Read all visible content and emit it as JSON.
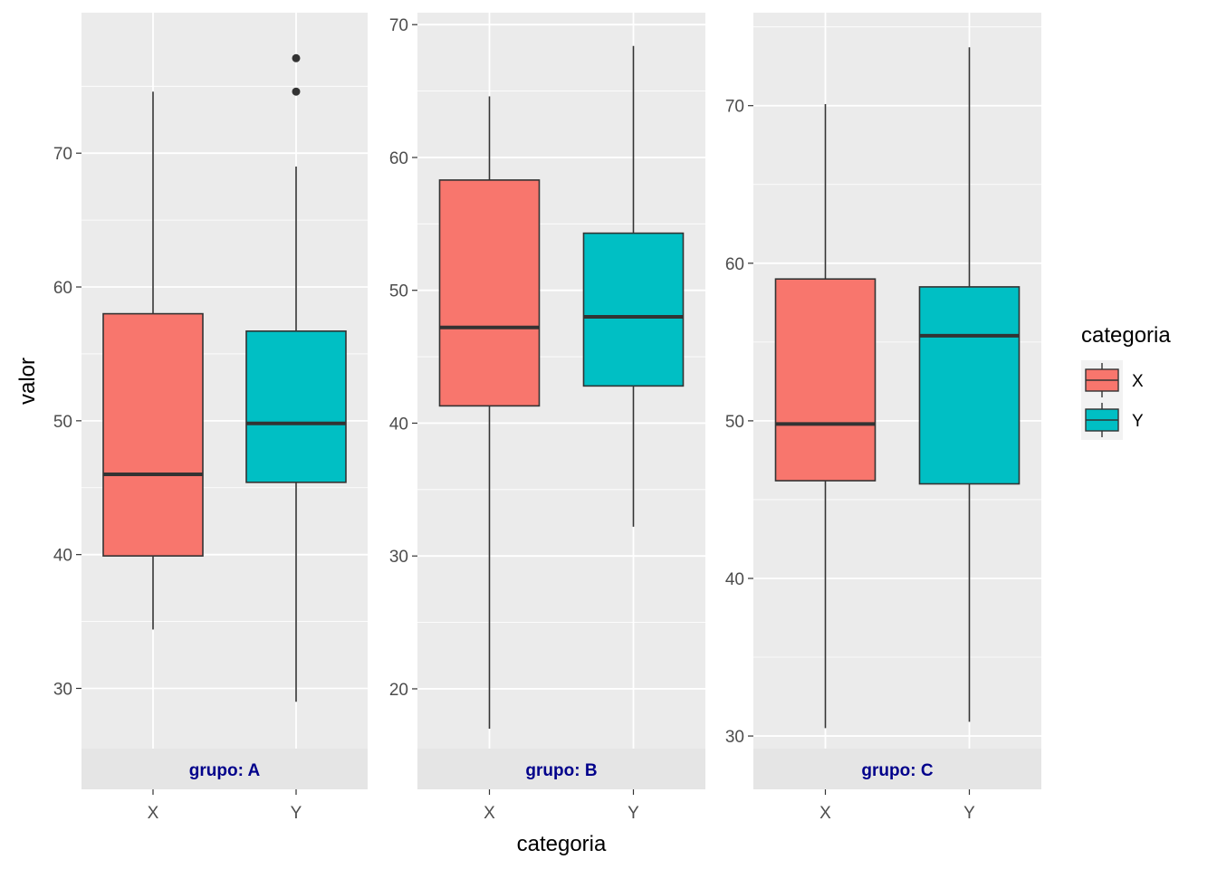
{
  "chart_data": {
    "type": "boxplot",
    "facet_variable": "grupo",
    "xlabel": "categoria",
    "ylabel": "valor",
    "categories": [
      "X",
      "Y"
    ],
    "colors": {
      "X": "#F8766D",
      "Y": "#00BFC4"
    },
    "legend": {
      "title": "categoria",
      "position": "right",
      "entries": [
        "X",
        "Y"
      ]
    },
    "panels": [
      {
        "strip": "grupo: A",
        "ylim": [
          25.5,
          80.5
        ],
        "yticks": [
          30,
          40,
          50,
          60,
          70
        ],
        "boxes": [
          {
            "category": "X",
            "lower_whisker": 34.4,
            "q1": 39.9,
            "median": 46.0,
            "q3": 58.0,
            "upper_whisker": 74.6,
            "outliers": []
          },
          {
            "category": "Y",
            "lower_whisker": 29.0,
            "q1": 45.4,
            "median": 49.8,
            "q3": 56.7,
            "upper_whisker": 69.0,
            "outliers": [
              74.6,
              77.1
            ]
          }
        ]
      },
      {
        "strip": "grupo: B",
        "ylim": [
          15.5,
          70.9
        ],
        "yticks": [
          20,
          30,
          40,
          50,
          60,
          70
        ],
        "boxes": [
          {
            "category": "X",
            "lower_whisker": 17.0,
            "q1": 41.3,
            "median": 47.2,
            "q3": 58.3,
            "upper_whisker": 64.6,
            "outliers": []
          },
          {
            "category": "Y",
            "lower_whisker": 32.2,
            "q1": 42.8,
            "median": 48.0,
            "q3": 54.3,
            "upper_whisker": 68.4,
            "outliers": []
          }
        ]
      },
      {
        "strip": "grupo: C",
        "ylim": [
          29.2,
          75.9
        ],
        "yticks": [
          30,
          40,
          50,
          60,
          70
        ],
        "boxes": [
          {
            "category": "X",
            "lower_whisker": 30.5,
            "q1": 46.2,
            "median": 49.8,
            "q3": 59.0,
            "upper_whisker": 70.1,
            "outliers": []
          },
          {
            "category": "Y",
            "lower_whisker": 30.9,
            "q1": 46.0,
            "median": 55.4,
            "q3": 58.5,
            "upper_whisker": 73.7,
            "outliers": []
          }
        ]
      }
    ]
  }
}
